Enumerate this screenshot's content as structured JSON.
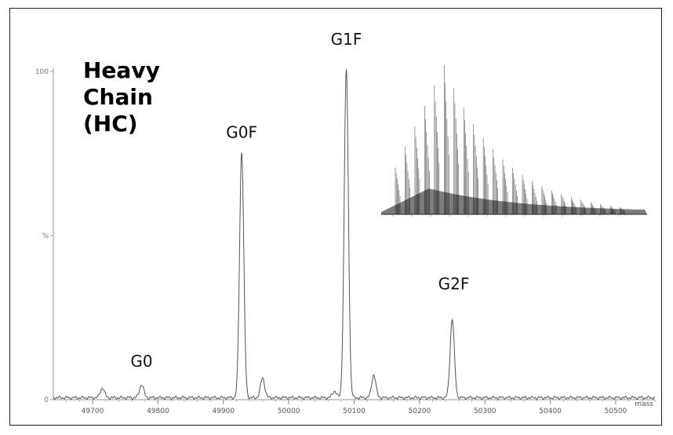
{
  "chart_data": {
    "type": "line",
    "title_lines": [
      "Heavy",
      "Chain",
      "(HC)"
    ],
    "xlabel": "mass",
    "ylabel": "%",
    "xlim": [
      49640,
      50560
    ],
    "ylim": [
      0,
      100
    ],
    "x_ticks": [
      49700,
      49800,
      49900,
      50000,
      50100,
      50200,
      50300,
      50400,
      50500
    ],
    "y_ticks": [
      {
        "value": 100,
        "label": "100"
      },
      {
        "value": 50,
        "label": "%"
      },
      {
        "value": 0,
        "label": "0"
      }
    ],
    "grid": false,
    "series": [
      {
        "peaks": [
          {
            "mass": 49715,
            "intensity": 3
          },
          {
            "mass": 49775,
            "intensity": 4
          },
          {
            "mass": 49928,
            "intensity": 75
          },
          {
            "mass": 49960,
            "intensity": 6
          },
          {
            "mass": 50070,
            "intensity": 2
          },
          {
            "mass": 50088,
            "intensity": 100
          },
          {
            "mass": 50130,
            "intensity": 7
          },
          {
            "mass": 50250,
            "intensity": 24
          }
        ]
      }
    ],
    "annotations": [
      {
        "label": "G0",
        "mass": 49775
      },
      {
        "label": "G0F",
        "mass": 49928
      },
      {
        "label": "G1F",
        "mass": 50088
      },
      {
        "label": "G2F",
        "mass": 50250
      }
    ],
    "inset": {
      "description_free": true,
      "num_peaks": 24
    }
  }
}
